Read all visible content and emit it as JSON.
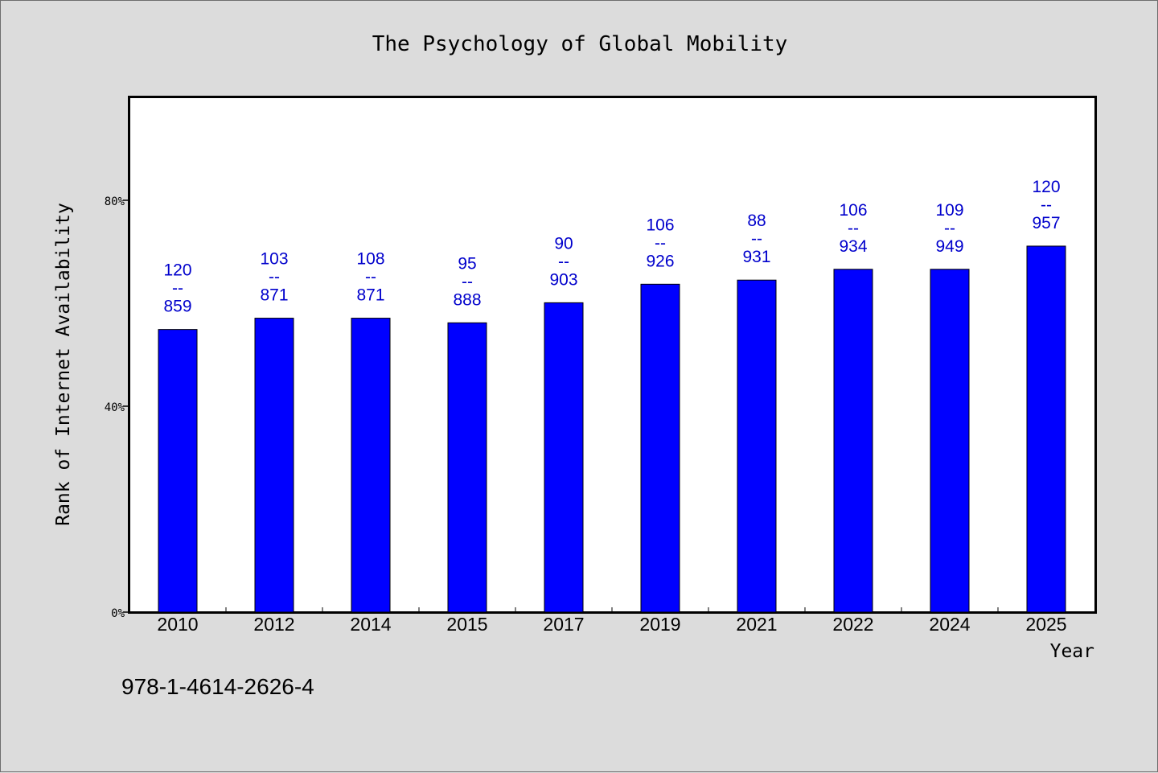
{
  "chart_data": {
    "type": "bar",
    "title": "The Psychology of Global Mobility",
    "xlabel": "Year",
    "ylabel": "Rank of Internet Availability",
    "categories": [
      "2010",
      "2012",
      "2014",
      "2015",
      "2017",
      "2019",
      "2021",
      "2022",
      "2024",
      "2025"
    ],
    "series": [
      {
        "values": [
          54.9,
          57.1,
          57.1,
          56.2,
          60.1,
          63.7,
          64.5,
          66.6,
          66.6,
          71.1
        ],
        "labels": [
          [
            "120",
            "--",
            "859"
          ],
          [
            "103",
            "--",
            "871"
          ],
          [
            "108",
            "--",
            "871"
          ],
          [
            "95",
            "--",
            "888"
          ],
          [
            "90",
            "--",
            "903"
          ],
          [
            "106",
            "--",
            "926"
          ],
          [
            "88",
            "--",
            "931"
          ],
          [
            "106",
            "--",
            "934"
          ],
          [
            "109",
            "--",
            "949"
          ],
          [
            "120",
            "--",
            "957"
          ]
        ]
      }
    ],
    "ylim": [
      0,
      100
    ],
    "yticks": [
      0,
      40,
      80
    ],
    "ytick_labels": [
      "0%",
      "40%",
      "80%"
    ],
    "grid": false,
    "bar_color": "#0000ff",
    "label_color": "#0000cc"
  },
  "footer": {
    "isbn": "978-1-4614-2626-4"
  }
}
